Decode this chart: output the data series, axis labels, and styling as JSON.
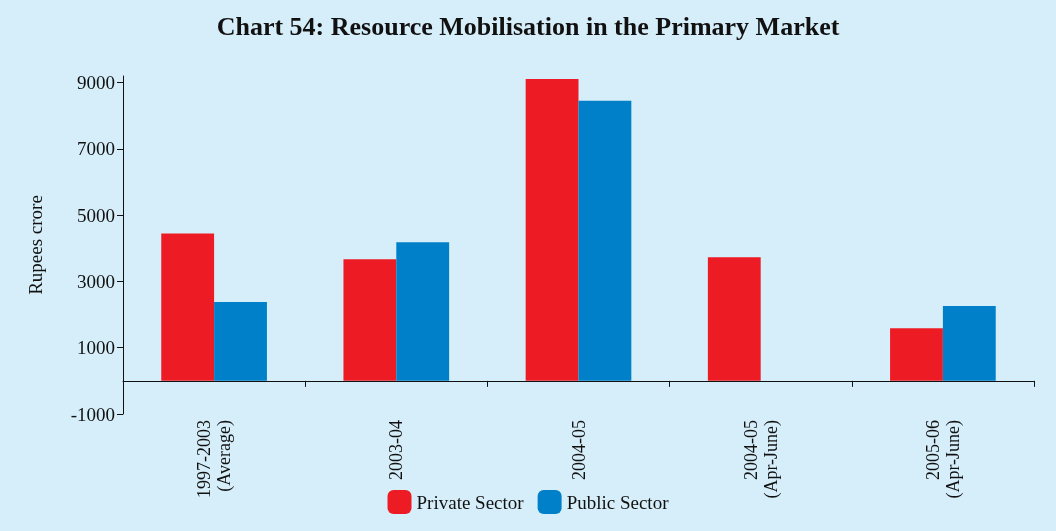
{
  "chart_data": {
    "type": "bar",
    "title": "Chart 54: Resource Mobilisation in the Primary Market",
    "ylabel": "Rupees crore",
    "categories": [
      "1997-2003\n(Average)",
      "2003-04",
      "2004-05",
      "2004-05\n(Apr-June)",
      "2005-06\n(Apr-June)"
    ],
    "series": [
      {
        "name": "Private Sector",
        "color": "#ed1c24",
        "values": [
          4450,
          3670,
          9110,
          3730,
          1590
        ]
      },
      {
        "name": "Public Sector",
        "color": "#0080c8",
        "values": [
          2380,
          4180,
          8450,
          0,
          2260
        ]
      }
    ],
    "ylim": [
      -1000,
      9200
    ],
    "yticks": [
      -1000,
      1000,
      3000,
      5000,
      7000,
      9000
    ],
    "grid": false,
    "legend": "bottom"
  }
}
